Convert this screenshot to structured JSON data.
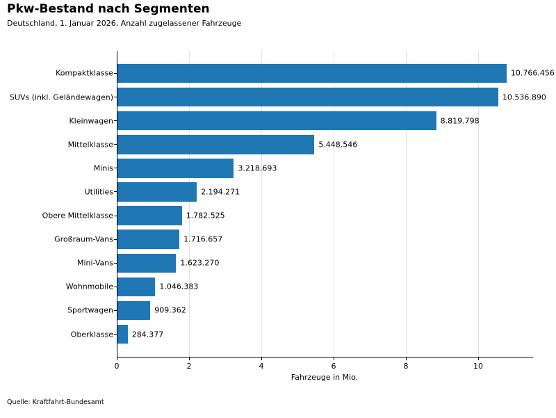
{
  "header": {
    "title": "Pkw-Bestand nach Segmenten",
    "subtitle": "Deutschland, 1. Januar 2026, Anzahl zugelassener Fahrzeuge"
  },
  "chart_data": {
    "type": "bar",
    "orientation": "horizontal",
    "title": "Pkw-Bestand nach Segmenten",
    "subtitle": "Deutschland, 1. Januar 2026, Anzahl zugelassener Fahrzeuge",
    "categories": [
      "Kompaktklasse",
      "SUVs (inkl. Geländewagen)",
      "Kleinwagen",
      "Mittelklasse",
      "Minis",
      "Utilities",
      "Obere Mittelklasse",
      "Großraum-Vans",
      "Mini-Vans",
      "Wohnmobile",
      "Sportwagen",
      "Oberklasse"
    ],
    "values": [
      10766456,
      10536890,
      8819798,
      5448546,
      3218693,
      2194271,
      1782525,
      1716657,
      1623270,
      1046383,
      909362,
      284377
    ],
    "value_labels": [
      "10.766.456",
      "10.536.890",
      "8.819.798",
      "5.448.546",
      "3.218.693",
      "2.194.271",
      "1.782.525",
      "1.716.657",
      "1.623.270",
      "1.046.383",
      "909.362",
      "284.377"
    ],
    "xlabel": "Fahrzeuge in Mio.",
    "xlim": [
      0,
      11.5
    ],
    "xticks": [
      0,
      2,
      4,
      6,
      8,
      10
    ],
    "bar_color": "#1f77b4",
    "grid": true,
    "grid_color": "#e0e0e0",
    "legend": "none"
  },
  "footer": {
    "source": "Quelle: Kraftfahrt-Bundesamt"
  }
}
